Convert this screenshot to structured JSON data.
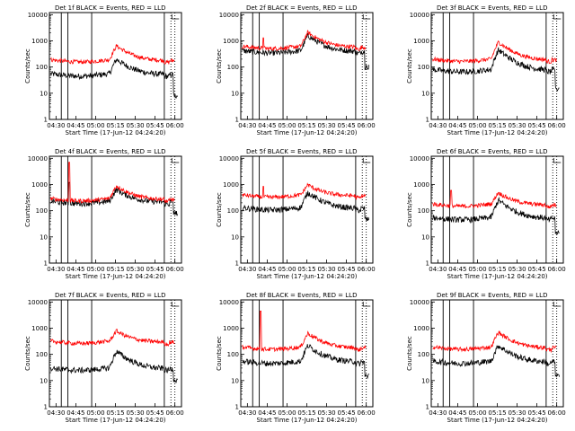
{
  "colors": {
    "events": "#000000",
    "lld": "#ff0000",
    "axes": "#000000",
    "background": "#ffffff"
  },
  "chart_data": [
    {
      "type": "line",
      "title": "Det 1f  BLACK = Events, RED = LLD",
      "xlabel": "Start Time (17-Jun-12 04:24:20)",
      "ylabel": "Counts/sec",
      "yscale": "log",
      "ylim": [
        1,
        12000
      ],
      "xlim": [
        "04:25",
        "06:05"
      ],
      "x_ticks": [
        "04:30",
        "04:45",
        "05:00",
        "05:15",
        "05:30",
        "05:45",
        "06:00"
      ],
      "y_ticks": [
        "1",
        "10",
        "100",
        "1000",
        "10000"
      ],
      "vlines_solid": [
        "04:34",
        "04:39",
        "04:57",
        "05:52"
      ],
      "vlines_dotted": [
        "05:57",
        "06:00"
      ],
      "series": [
        {
          "name": "Events",
          "color": "#000000",
          "base": 55,
          "flare_peak": 200,
          "spikes": [],
          "end_drop": 8
        },
        {
          "name": "LLD",
          "color": "#ff0000",
          "base": 190,
          "flare_peak": 650,
          "spikes": [],
          "end_drop": null
        }
      ]
    },
    {
      "type": "line",
      "title": "Det 2f  BLACK = Events, RED = LLD",
      "xlabel": "Start Time (17-Jun-12 04:24:20)",
      "ylabel": "Counts/sec",
      "yscale": "log",
      "ylim": [
        1,
        12000
      ],
      "xlim": [
        "04:25",
        "06:05"
      ],
      "x_ticks": [
        "04:30",
        "04:45",
        "05:00",
        "05:15",
        "05:30",
        "05:45",
        "06:00"
      ],
      "y_ticks": [
        "1",
        "10",
        "100",
        "1000",
        "10000"
      ],
      "vlines_solid": [
        "04:34",
        "04:39",
        "04:57",
        "05:52"
      ],
      "vlines_dotted": [
        "05:57",
        "06:00"
      ],
      "series": [
        {
          "name": "Events",
          "color": "#000000",
          "base": 420,
          "flare_peak": 1600,
          "spikes": [],
          "end_drop": 100
        },
        {
          "name": "LLD",
          "color": "#ff0000",
          "base": 620,
          "flare_peak": 2100,
          "spikes": [
            {
              "t": "04:42",
              "v": 1300
            }
          ],
          "end_drop": null
        }
      ]
    },
    {
      "type": "line",
      "title": "Det 3f  BLACK = Events, RED = LLD",
      "xlabel": "Start Time (17-Jun-12 04:24:20)",
      "ylabel": "Counts/sec",
      "yscale": "log",
      "ylim": [
        1,
        12000
      ],
      "xlim": [
        "04:25",
        "06:05"
      ],
      "x_ticks": [
        "04:30",
        "04:45",
        "05:00",
        "05:15",
        "05:30",
        "05:45",
        "06:00"
      ],
      "y_ticks": [
        "1",
        "10",
        "100",
        "1000",
        "10000"
      ],
      "vlines_solid": [
        "04:34",
        "04:39",
        "04:57",
        "05:52"
      ],
      "vlines_dotted": [
        "05:57",
        "06:00"
      ],
      "series": [
        {
          "name": "Events",
          "color": "#000000",
          "base": 80,
          "flare_peak": 450,
          "spikes": [],
          "end_drop": 15
        },
        {
          "name": "LLD",
          "color": "#ff0000",
          "base": 200,
          "flare_peak": 900,
          "spikes": [],
          "end_drop": null
        }
      ]
    },
    {
      "type": "line",
      "title": "Det 4f  BLACK = Events, RED = LLD",
      "xlabel": "Start Time (17-Jun-12 04:24:20)",
      "ylabel": "Counts/sec",
      "yscale": "log",
      "ylim": [
        1,
        12000
      ],
      "xlim": [
        "04:25",
        "06:05"
      ],
      "x_ticks": [
        "04:30",
        "04:45",
        "05:00",
        "05:15",
        "05:30",
        "05:45",
        "06:00"
      ],
      "y_ticks": [
        "1",
        "10",
        "100",
        "1000",
        "10000"
      ],
      "vlines_solid": [
        "04:34",
        "04:39",
        "04:57",
        "05:52"
      ],
      "vlines_dotted": [
        "05:57",
        "06:00"
      ],
      "series": [
        {
          "name": "Events",
          "color": "#000000",
          "base": 230,
          "flare_peak": 650,
          "spikes": [
            {
              "t": "04:40",
              "v": 1200
            }
          ],
          "end_drop": 80
        },
        {
          "name": "LLD",
          "color": "#ff0000",
          "base": 290,
          "flare_peak": 900,
          "spikes": [
            {
              "t": "04:40",
              "v": 7000
            }
          ],
          "end_drop": null
        }
      ]
    },
    {
      "type": "line",
      "title": "Det 5f  BLACK = Events, RED = LLD",
      "xlabel": "Start Time (17-Jun-12 04:24:20)",
      "ylabel": "Counts/sec",
      "yscale": "log",
      "ylim": [
        1,
        12000
      ],
      "xlim": [
        "04:25",
        "06:05"
      ],
      "x_ticks": [
        "04:30",
        "04:45",
        "05:00",
        "05:15",
        "05:30",
        "05:45",
        "06:00"
      ],
      "y_ticks": [
        "1",
        "10",
        "100",
        "1000",
        "10000"
      ],
      "vlines_solid": [
        "04:34",
        "04:39",
        "04:57",
        "05:52"
      ],
      "vlines_dotted": [
        "05:57",
        "06:00"
      ],
      "series": [
        {
          "name": "Events",
          "color": "#000000",
          "base": 130,
          "flare_peak": 500,
          "spikes": [],
          "end_drop": 45
        },
        {
          "name": "LLD",
          "color": "#ff0000",
          "base": 400,
          "flare_peak": 1000,
          "spikes": [
            {
              "t": "04:42",
              "v": 850
            }
          ],
          "end_drop": null
        }
      ]
    },
    {
      "type": "line",
      "title": "Det 6f  BLACK = Events, RED = LLD",
      "xlabel": "Start Time (17-Jun-12 04:24:20)",
      "ylabel": "Counts/sec",
      "yscale": "log",
      "ylim": [
        1,
        12000
      ],
      "xlim": [
        "04:25",
        "06:05"
      ],
      "x_ticks": [
        "04:30",
        "04:45",
        "05:00",
        "05:15",
        "05:30",
        "05:45",
        "06:00"
      ],
      "y_ticks": [
        "1",
        "10",
        "100",
        "1000",
        "10000"
      ],
      "vlines_solid": [
        "04:34",
        "04:39",
        "04:57",
        "05:52"
      ],
      "vlines_dotted": [
        "05:57",
        "06:00"
      ],
      "series": [
        {
          "name": "Events",
          "color": "#000000",
          "base": 55,
          "flare_peak": 250,
          "spikes": [],
          "end_drop": 15
        },
        {
          "name": "LLD",
          "color": "#ff0000",
          "base": 180,
          "flare_peak": 500,
          "spikes": [
            {
              "t": "04:40",
              "v": 600
            }
          ],
          "end_drop": null
        }
      ]
    },
    {
      "type": "line",
      "title": "Det 7f  BLACK = Events, RED = LLD",
      "xlabel": "Start Time (17-Jun-12 04:24:20)",
      "ylabel": "Counts/sec",
      "yscale": "log",
      "ylim": [
        1,
        12000
      ],
      "xlim": [
        "04:25",
        "06:05"
      ],
      "x_ticks": [
        "04:30",
        "04:45",
        "05:00",
        "05:15",
        "05:30",
        "05:45",
        "06:00"
      ],
      "y_ticks": [
        "1",
        "10",
        "100",
        "1000",
        "10000"
      ],
      "vlines_solid": [
        "04:34",
        "04:39",
        "04:57",
        "05:52"
      ],
      "vlines_dotted": [
        "05:57",
        "06:00"
      ],
      "series": [
        {
          "name": "Events",
          "color": "#000000",
          "base": 30,
          "flare_peak": 130,
          "spikes": [],
          "end_drop": 10
        },
        {
          "name": "LLD",
          "color": "#ff0000",
          "base": 320,
          "flare_peak": 800,
          "spikes": [],
          "end_drop": null
        }
      ]
    },
    {
      "type": "line",
      "title": "Det 8f  BLACK = Events, RED = LLD",
      "xlabel": "Start Time (17-Jun-12 04:24:20)",
      "ylabel": "Counts/sec",
      "yscale": "log",
      "ylim": [
        1,
        12000
      ],
      "xlim": [
        "04:25",
        "06:05"
      ],
      "x_ticks": [
        "04:30",
        "04:45",
        "05:00",
        "05:15",
        "05:30",
        "05:45",
        "06:00"
      ],
      "y_ticks": [
        "1",
        "10",
        "100",
        "1000",
        "10000"
      ],
      "vlines_solid": [
        "04:34",
        "04:39",
        "04:57",
        "05:52"
      ],
      "vlines_dotted": [
        "05:57",
        "06:00"
      ],
      "series": [
        {
          "name": "Events",
          "color": "#000000",
          "base": 55,
          "flare_peak": 220,
          "spikes": [],
          "end_drop": 15
        },
        {
          "name": "LLD",
          "color": "#ff0000",
          "base": 190,
          "flare_peak": 650,
          "spikes": [
            {
              "t": "04:40",
              "v": 4500
            }
          ],
          "end_drop": null
        }
      ]
    },
    {
      "type": "line",
      "title": "Det 9f  BLACK = Events, RED = LLD",
      "xlabel": "Start Time (17-Jun-12 04:24:20)",
      "ylabel": "Counts/sec",
      "yscale": "log",
      "ylim": [
        1,
        12000
      ],
      "xlim": [
        "04:25",
        "06:05"
      ],
      "x_ticks": [
        "04:30",
        "04:45",
        "05:00",
        "05:15",
        "05:30",
        "05:45",
        "06:00"
      ],
      "y_ticks": [
        "1",
        "10",
        "100",
        "1000",
        "10000"
      ],
      "vlines_solid": [
        "04:34",
        "04:39",
        "04:57",
        "05:52"
      ],
      "vlines_dotted": [
        "05:57",
        "06:00"
      ],
      "series": [
        {
          "name": "Events",
          "color": "#000000",
          "base": 55,
          "flare_peak": 220,
          "spikes": [],
          "end_drop": 15
        },
        {
          "name": "LLD",
          "color": "#ff0000",
          "base": 190,
          "flare_peak": 700,
          "spikes": [],
          "end_drop": null
        }
      ]
    }
  ]
}
